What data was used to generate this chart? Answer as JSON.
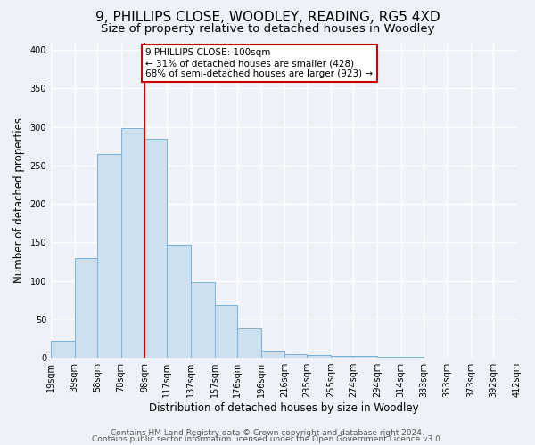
{
  "title": "9, PHILLIPS CLOSE, WOODLEY, READING, RG5 4XD",
  "subtitle": "Size of property relative to detached houses in Woodley",
  "xlabel": "Distribution of detached houses by size in Woodley",
  "ylabel": "Number of detached properties",
  "bin_edges": [
    19,
    39,
    58,
    78,
    98,
    117,
    137,
    157,
    176,
    196,
    216,
    235,
    255,
    274,
    294,
    314,
    333,
    353,
    373,
    392,
    412
  ],
  "bar_heights": [
    22,
    130,
    265,
    298,
    285,
    147,
    98,
    68,
    38,
    9,
    5,
    3,
    2,
    2,
    1,
    1,
    0,
    0,
    0,
    0
  ],
  "bar_color": "#cce0f0",
  "bar_edge_color": "#7ab0d4",
  "property_line_x": 98,
  "property_line_color": "#cc0000",
  "annotation_text": "9 PHILLIPS CLOSE: 100sqm\n← 31% of detached houses are smaller (428)\n68% of semi-detached houses are larger (923) →",
  "annotation_box_color": "#ffffff",
  "annotation_box_edge_color": "#cc0000",
  "x_tick_labels": [
    "19sqm",
    "39sqm",
    "58sqm",
    "78sqm",
    "98sqm",
    "117sqm",
    "137sqm",
    "157sqm",
    "176sqm",
    "196sqm",
    "216sqm",
    "235sqm",
    "255sqm",
    "274sqm",
    "294sqm",
    "314sqm",
    "333sqm",
    "353sqm",
    "373sqm",
    "392sqm",
    "412sqm"
  ],
  "ylim": [
    0,
    410
  ],
  "yticks": [
    0,
    50,
    100,
    150,
    200,
    250,
    300,
    350,
    400
  ],
  "footer_line1": "Contains HM Land Registry data © Crown copyright and database right 2024.",
  "footer_line2": "Contains public sector information licensed under the Open Government Licence v3.0.",
  "bg_color": "#eef2f8",
  "plot_bg_color": "#eef2f8",
  "grid_color": "#ffffff",
  "title_fontsize": 11,
  "subtitle_fontsize": 9.5,
  "axis_label_fontsize": 8.5,
  "tick_fontsize": 7,
  "footer_fontsize": 6.5,
  "annotation_fontsize": 7.5
}
